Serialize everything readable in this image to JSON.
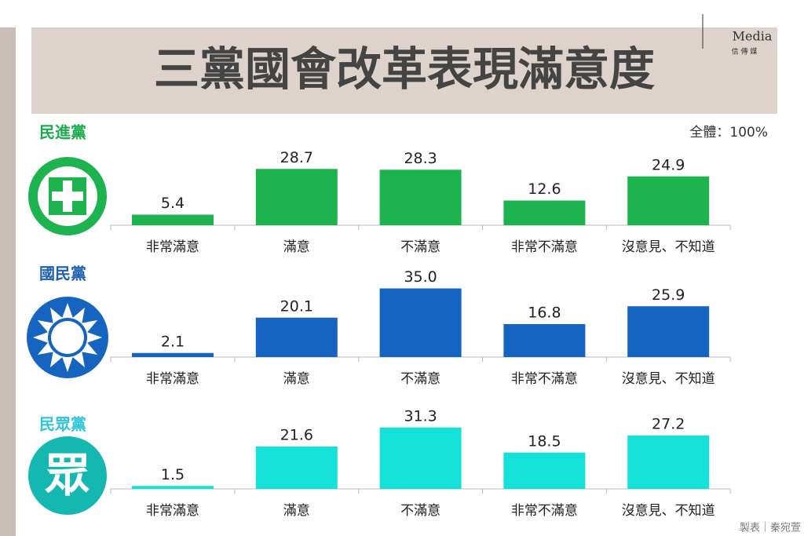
{
  "title": "三黨國會改革表現滿意度",
  "note": "全體：100%",
  "credit": "製表｜秦宛萱",
  "logo": {
    "name": "Media",
    "subtitle": "信 傳 媒"
  },
  "chart_data": [
    {
      "type": "bar",
      "title": "民進黨",
      "color": "#1db34f",
      "categories": [
        "非常滿意",
        "滿意",
        "不滿意",
        "非常不滿意",
        "沒意見、不知道"
      ],
      "values": [
        5.4,
        28.7,
        28.3,
        12.6,
        24.9
      ],
      "value_labels": [
        "5.4",
        "28.7",
        "28.3",
        "12.6",
        "24.9"
      ]
    },
    {
      "type": "bar",
      "title": "國民黨",
      "color": "#1565c0",
      "categories": [
        "非常滿意",
        "滿意",
        "不滿意",
        "非常不滿意",
        "沒意見、不知道"
      ],
      "values": [
        2.1,
        20.1,
        35,
        16.8,
        25.9
      ],
      "value_labels": [
        "2.1",
        "20.1",
        "35.0",
        "16.8",
        "25.9"
      ]
    },
    {
      "type": "bar",
      "title": "民眾黨",
      "color": "#14e1d8",
      "logo_text": "眾",
      "categories": [
        "非常滿意",
        "滿意",
        "不滿意",
        "非常不滿意",
        "沒意見、不知道"
      ],
      "values": [
        1.5,
        21.6,
        31.3,
        18.5,
        27.2
      ],
      "value_labels": [
        "1.5",
        "21.6",
        "31.3",
        "18.5",
        "27.2"
      ]
    }
  ]
}
